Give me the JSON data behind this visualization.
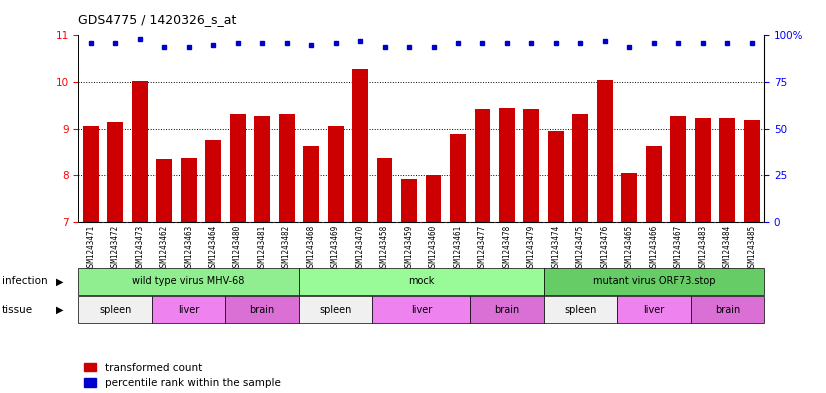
{
  "title": "GDS4775 / 1420326_s_at",
  "samples": [
    "GSM1243471",
    "GSM1243472",
    "GSM1243473",
    "GSM1243462",
    "GSM1243463",
    "GSM1243464",
    "GSM1243480",
    "GSM1243481",
    "GSM1243482",
    "GSM1243468",
    "GSM1243469",
    "GSM1243470",
    "GSM1243458",
    "GSM1243459",
    "GSM1243460",
    "GSM1243461",
    "GSM1243477",
    "GSM1243478",
    "GSM1243479",
    "GSM1243474",
    "GSM1243475",
    "GSM1243476",
    "GSM1243465",
    "GSM1243466",
    "GSM1243467",
    "GSM1243483",
    "GSM1243484",
    "GSM1243485"
  ],
  "bar_values": [
    9.05,
    9.15,
    10.02,
    8.35,
    8.38,
    8.75,
    9.32,
    9.28,
    9.32,
    8.62,
    9.05,
    10.28,
    8.38,
    7.92,
    8.0,
    8.88,
    9.42,
    9.45,
    9.42,
    8.95,
    9.32,
    10.05,
    8.05,
    8.62,
    9.28,
    9.22,
    9.22,
    9.18
  ],
  "percentile_values": [
    96,
    96,
    98,
    94,
    94,
    95,
    96,
    96,
    96,
    95,
    96,
    97,
    94,
    94,
    94,
    96,
    96,
    96,
    96,
    96,
    96,
    97,
    94,
    96,
    96,
    96,
    96,
    96
  ],
  "ylim_left": [
    7,
    11
  ],
  "ylim_right": [
    0,
    100
  ],
  "yticks_left": [
    7,
    8,
    9,
    10,
    11
  ],
  "yticks_right": [
    0,
    25,
    50,
    75,
    100
  ],
  "bar_color": "#cc0000",
  "dot_color": "#0000cc",
  "infection_groups": [
    {
      "label": "wild type virus MHV-68",
      "start": 0,
      "end": 9,
      "color": "#90ee90"
    },
    {
      "label": "mock",
      "start": 9,
      "end": 19,
      "color": "#98fb98"
    },
    {
      "label": "mutant virus ORF73.stop",
      "start": 19,
      "end": 28,
      "color": "#66cc66"
    }
  ],
  "tissue_groups": [
    {
      "label": "spleen",
      "start": 0,
      "end": 3,
      "color": "#f0f0f0"
    },
    {
      "label": "liver",
      "start": 3,
      "end": 6,
      "color": "#ee82ee"
    },
    {
      "label": "brain",
      "start": 6,
      "end": 9,
      "color": "#da70d6"
    },
    {
      "label": "spleen",
      "start": 9,
      "end": 12,
      "color": "#f0f0f0"
    },
    {
      "label": "liver",
      "start": 12,
      "end": 16,
      "color": "#ee82ee"
    },
    {
      "label": "brain",
      "start": 16,
      "end": 19,
      "color": "#da70d6"
    },
    {
      "label": "spleen",
      "start": 19,
      "end": 22,
      "color": "#f0f0f0"
    },
    {
      "label": "liver",
      "start": 22,
      "end": 25,
      "color": "#ee82ee"
    },
    {
      "label": "brain",
      "start": 25,
      "end": 28,
      "color": "#da70d6"
    }
  ],
  "legend_labels": [
    "transformed count",
    "percentile rank within the sample"
  ],
  "legend_colors": [
    "#cc0000",
    "#0000cc"
  ],
  "xlabel_infection": "infection",
  "xlabel_tissue": "tissue",
  "tick_label_fontsize": 5.5,
  "bar_bottom": 7,
  "xticklabel_bg": "#d3d3d3"
}
